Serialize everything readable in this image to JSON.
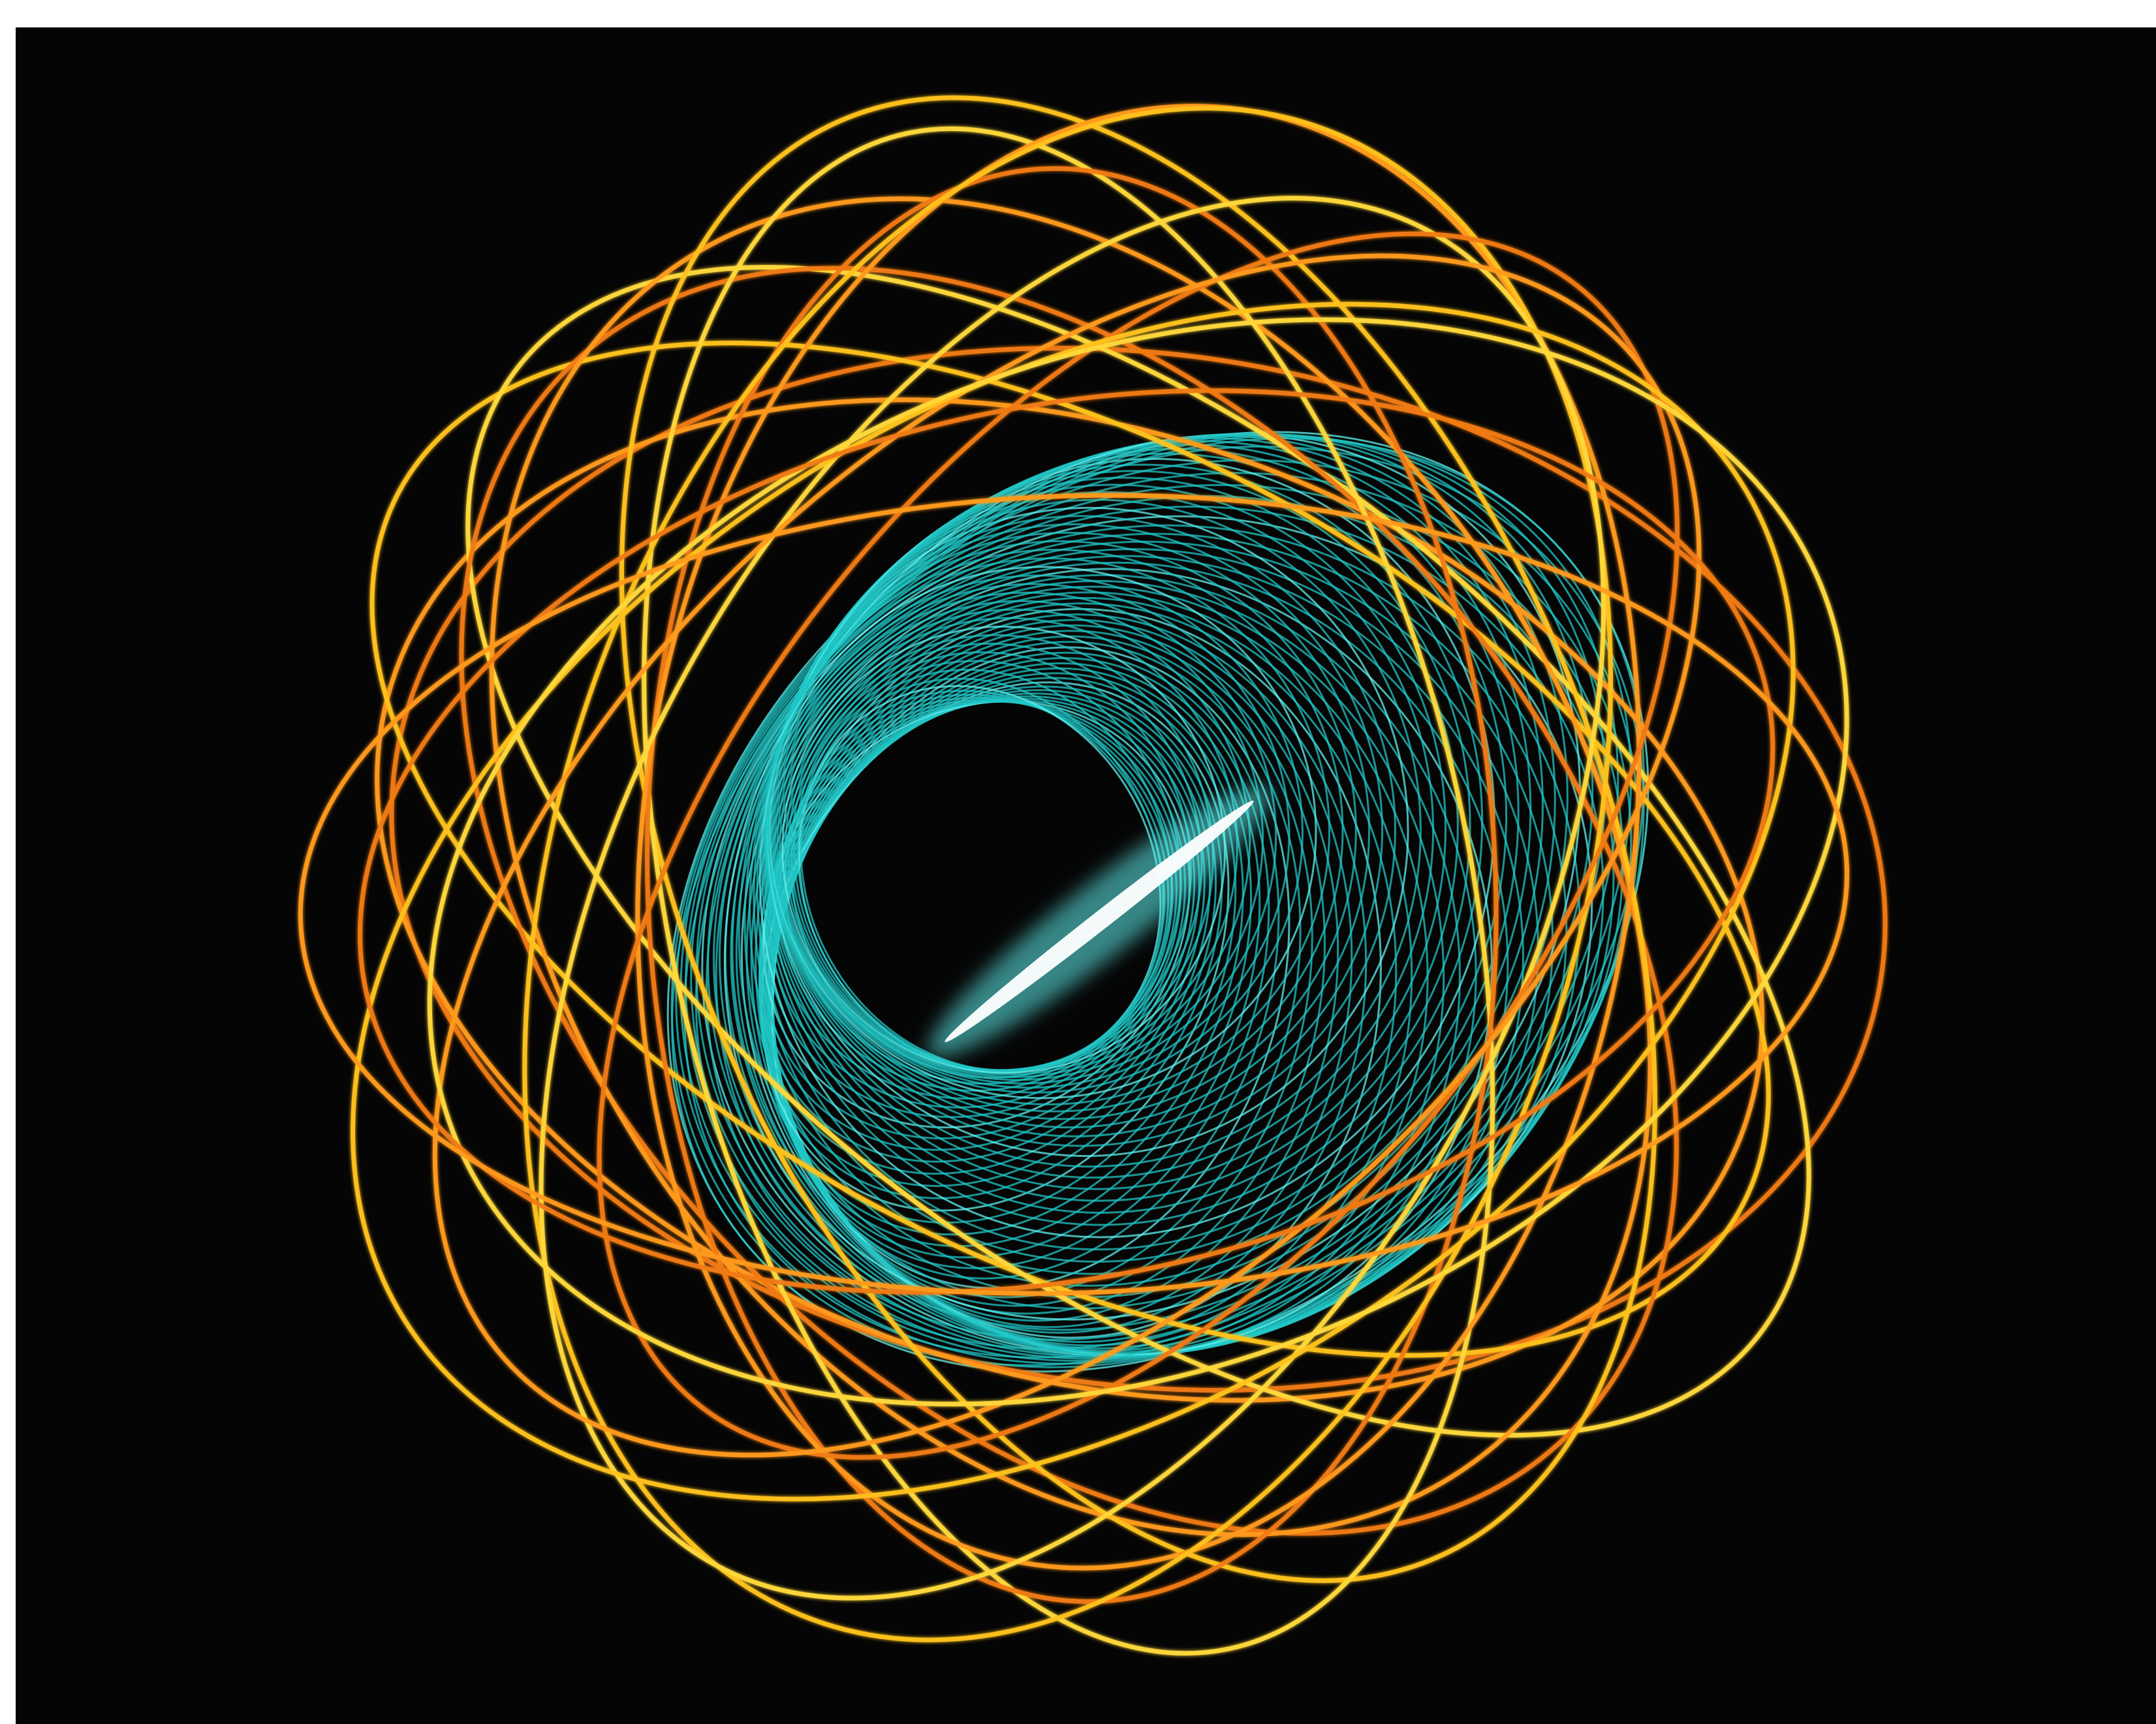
{
  "image": {
    "background_color": "#050505",
    "frame_color": "#ffffff"
  },
  "palette": {
    "orange_deep": "#f07a12",
    "orange": "#ff9a1f",
    "gold": "#ffc21c",
    "yellow": "#ffd83a",
    "cyan": "#20c6c6",
    "cyan_bright": "#5ff0ee",
    "white_core": "#ffffff"
  },
  "components": [
    {
      "name": "orange-orbit-loops",
      "kind": "rosette",
      "color_keys": [
        "orange_deep",
        "orange",
        "gold",
        "yellow"
      ]
    },
    {
      "name": "cyan-helical-mesh",
      "kind": "twisted-torus",
      "color_keys": [
        "cyan",
        "cyan_bright"
      ]
    },
    {
      "name": "central-bright-core",
      "kind": "glow",
      "color_keys": [
        "white_core",
        "cyan_bright"
      ]
    }
  ]
}
